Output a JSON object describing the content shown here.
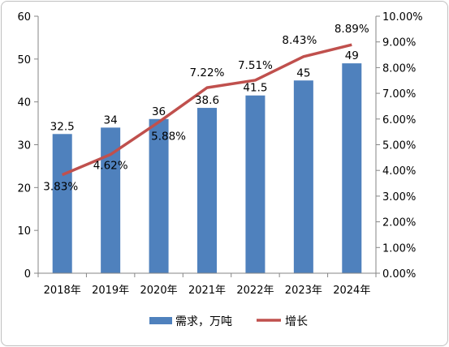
{
  "chart_data": {
    "type": "bar+line",
    "categories": [
      "2018年",
      "2019年",
      "2020年",
      "2021年",
      "2022年",
      "2023年",
      "2024年"
    ],
    "series": [
      {
        "name": "需求，万吨",
        "type": "bar",
        "axis": "left",
        "values": [
          32.5,
          34,
          36,
          38.6,
          41.5,
          45,
          49
        ],
        "labels": [
          "32.5",
          "34",
          "36",
          "38.6",
          "41.5",
          "45",
          "49"
        ],
        "color": "#4f81bd"
      },
      {
        "name": "增长",
        "type": "line",
        "axis": "right",
        "values": [
          3.83,
          4.62,
          5.88,
          7.22,
          7.51,
          8.43,
          8.89
        ],
        "labels": [
          "3.83%",
          "4.62%",
          "5.88%",
          "7.22%",
          "7.51%",
          "8.43%",
          "8.89%"
        ],
        "color": "#c0504d"
      }
    ],
    "y_left": {
      "ylim": [
        0,
        60
      ],
      "ticks": [
        "0",
        "10",
        "20",
        "30",
        "40",
        "50",
        "60"
      ]
    },
    "y_right": {
      "ylim": [
        0,
        10
      ],
      "ticks": [
        "0.00%",
        "1.00%",
        "2.00%",
        "3.00%",
        "4.00%",
        "5.00%",
        "6.00%",
        "7.00%",
        "8.00%",
        "9.00%",
        "10.00%"
      ]
    },
    "grid": false,
    "legend_position": "bottom"
  }
}
